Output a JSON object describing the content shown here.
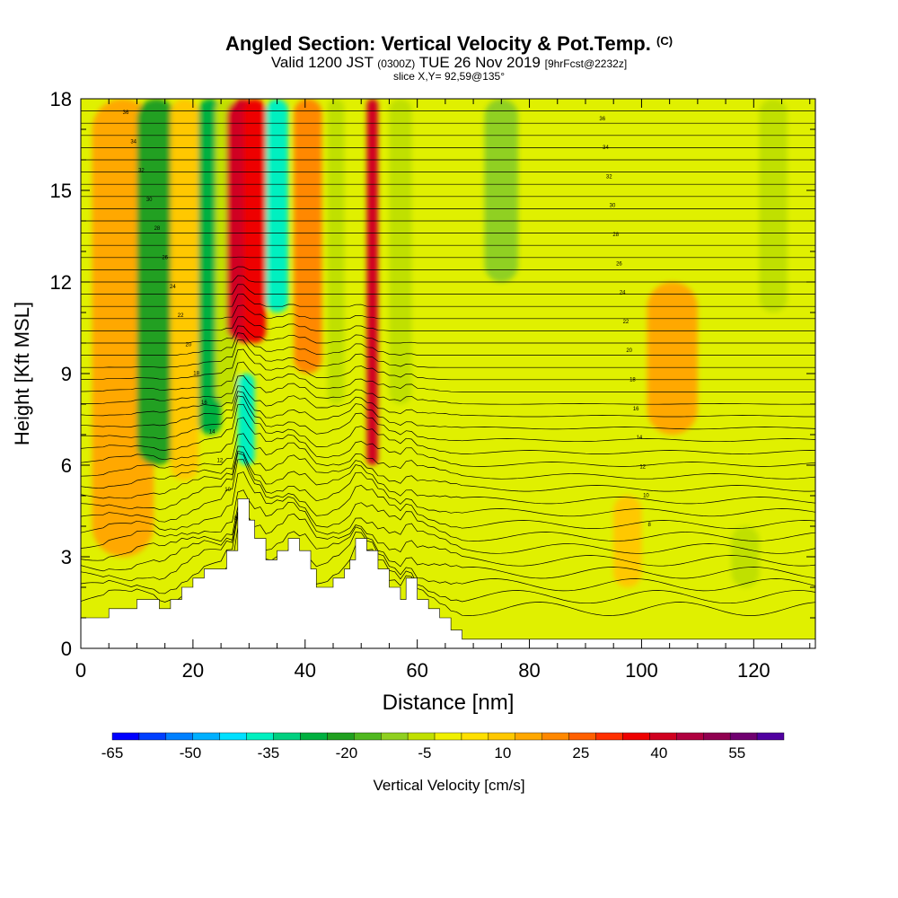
{
  "title": {
    "main": "Angled Section: Vertical Velocity & Pot.Temp.",
    "main_unit": "(C)",
    "valid_prefix": "Valid 1200 JST",
    "valid_utc": "(0300Z)",
    "valid_date": "TUE 26 Nov 2019",
    "forecast": "[9hrFcst@2232z]",
    "slice": "slice X,Y= 92,59@135°"
  },
  "chart_data": {
    "type": "heatmap",
    "xlabel": "Distance [nm]",
    "ylabel": "Height [Kft MSL]",
    "xlim": [
      0,
      131
    ],
    "ylim": [
      0,
      18
    ],
    "x_ticks": [
      0,
      20,
      40,
      60,
      80,
      100,
      120
    ],
    "y_ticks": [
      0,
      3,
      6,
      9,
      12,
      15,
      18
    ],
    "colorbar": {
      "label": "Vertical Velocity [cm/s]",
      "tick_labels": [
        -65,
        -50,
        -35,
        -20,
        -5,
        10,
        25,
        40,
        55
      ],
      "range": [
        -65,
        64
      ],
      "colors": [
        "#0000ff",
        "#0040ff",
        "#0080ff",
        "#00b0ff",
        "#00e0ff",
        "#00f0c0",
        "#00d080",
        "#00b040",
        "#20a020",
        "#50b820",
        "#90d020",
        "#c0e000",
        "#f0f000",
        "#ffe000",
        "#ffc800",
        "#ffa800",
        "#ff8800",
        "#ff6000",
        "#ff3000",
        "#ee0000",
        "#d00020",
        "#b00040",
        "#900050",
        "#700070",
        "#5000a0"
      ]
    },
    "potential_temperature_contour_labels": [
      36,
      34,
      32,
      30,
      28,
      26,
      24,
      22,
      20,
      18,
      16,
      14,
      12,
      10,
      8
    ],
    "terrain_profile": [
      [
        0,
        1
      ],
      [
        5,
        1
      ],
      [
        5,
        1.3
      ],
      [
        10,
        1.3
      ],
      [
        10,
        1.6
      ],
      [
        14,
        1.6
      ],
      [
        14,
        1.3
      ],
      [
        16,
        1.3
      ],
      [
        16,
        1.6
      ],
      [
        18,
        1.6
      ],
      [
        18,
        2
      ],
      [
        20,
        2
      ],
      [
        20,
        2.3
      ],
      [
        22,
        2.3
      ],
      [
        22,
        2.6
      ],
      [
        26,
        2.6
      ],
      [
        26,
        3.2
      ],
      [
        28,
        3.2
      ],
      [
        28,
        4.9
      ],
      [
        30,
        4.9
      ],
      [
        30,
        4.2
      ],
      [
        31,
        4.2
      ],
      [
        31,
        3.6
      ],
      [
        33,
        3.6
      ],
      [
        33,
        2.9
      ],
      [
        35,
        2.9
      ],
      [
        35,
        3.2
      ],
      [
        37,
        3.2
      ],
      [
        37,
        3.6
      ],
      [
        39,
        3.6
      ],
      [
        39,
        3.2
      ],
      [
        41,
        3.2
      ],
      [
        41,
        2.6
      ],
      [
        42,
        2.6
      ],
      [
        42,
        2
      ],
      [
        45,
        2
      ],
      [
        45,
        2.3
      ],
      [
        47,
        2.3
      ],
      [
        47,
        2.6
      ],
      [
        48,
        2.6
      ],
      [
        48,
        2.9
      ],
      [
        49,
        2.9
      ],
      [
        49,
        3.6
      ],
      [
        51,
        3.6
      ],
      [
        51,
        3.2
      ],
      [
        53,
        3.2
      ],
      [
        53,
        2.6
      ],
      [
        55,
        2.6
      ],
      [
        55,
        2
      ],
      [
        57,
        2
      ],
      [
        57,
        1.6
      ],
      [
        58,
        1.6
      ],
      [
        58,
        2.3
      ],
      [
        60,
        2.3
      ],
      [
        60,
        1.6
      ],
      [
        62,
        1.6
      ],
      [
        62,
        1.3
      ],
      [
        64,
        1.3
      ],
      [
        64,
        1
      ],
      [
        66,
        1
      ],
      [
        66,
        0.6
      ],
      [
        68,
        0.6
      ],
      [
        68,
        0.3
      ],
      [
        131,
        0.3
      ]
    ],
    "vertical_velocity_bands": [
      {
        "x": 8,
        "x_lo": 2,
        "x_hi": 13,
        "y_lo": 3,
        "y_hi": 18,
        "value": 15
      },
      {
        "x": 13,
        "x_lo": 10,
        "x_hi": 17,
        "y_lo": 6,
        "y_hi": 18,
        "value": -22
      },
      {
        "x": 18,
        "x_lo": 16,
        "x_hi": 21,
        "y_lo": 5.5,
        "y_hi": 18,
        "value": 12
      },
      {
        "x": 23,
        "x_lo": 21,
        "x_hi": 25,
        "y_lo": 7,
        "y_hi": 18,
        "value": -25
      },
      {
        "x": 26,
        "x_lo": 24,
        "x_hi": 28,
        "y_lo": 8,
        "y_hi": 18,
        "value": -5
      },
      {
        "x": 29,
        "x_lo": 26,
        "x_hi": 32,
        "y_lo": 10,
        "y_hi": 18,
        "value": 42
      },
      {
        "x": 31,
        "x_lo": 29,
        "x_hi": 33,
        "y_lo": 10,
        "y_hi": 18,
        "value": 38
      },
      {
        "x": 35,
        "x_lo": 33,
        "x_hi": 37,
        "y_lo": 11,
        "y_hi": 18,
        "value": -35
      },
      {
        "x": 29,
        "x_lo": 28,
        "x_hi": 31,
        "y_lo": 6,
        "y_hi": 9,
        "value": -38
      },
      {
        "x": 40,
        "x_lo": 38,
        "x_hi": 43,
        "y_lo": 9,
        "y_hi": 18,
        "value": 20
      },
      {
        "x": 45,
        "x_lo": 44,
        "x_hi": 47,
        "y_lo": 8,
        "y_hi": 18,
        "value": -8
      },
      {
        "x": 52,
        "x_lo": 51,
        "x_hi": 53,
        "y_lo": 6,
        "y_hi": 18,
        "value": 40
      },
      {
        "x": 57,
        "x_lo": 55,
        "x_hi": 59,
        "y_lo": 8,
        "y_hi": 18,
        "value": -5
      },
      {
        "x": 75,
        "x_lo": 72,
        "x_hi": 78,
        "y_lo": 12,
        "y_hi": 18,
        "value": -12
      },
      {
        "x": 105,
        "x_lo": 101,
        "x_hi": 110,
        "y_lo": 7,
        "y_hi": 12,
        "value": 15
      },
      {
        "x": 98,
        "x_lo": 95,
        "x_hi": 100,
        "y_lo": 2,
        "y_hi": 5,
        "value": 12
      },
      {
        "x": 124,
        "x_lo": 121,
        "x_hi": 126,
        "y_lo": 11,
        "y_hi": 18,
        "value": -8
      },
      {
        "x": 118,
        "x_lo": 116,
        "x_hi": 121,
        "y_lo": 2,
        "y_hi": 4,
        "value": -8
      }
    ]
  }
}
